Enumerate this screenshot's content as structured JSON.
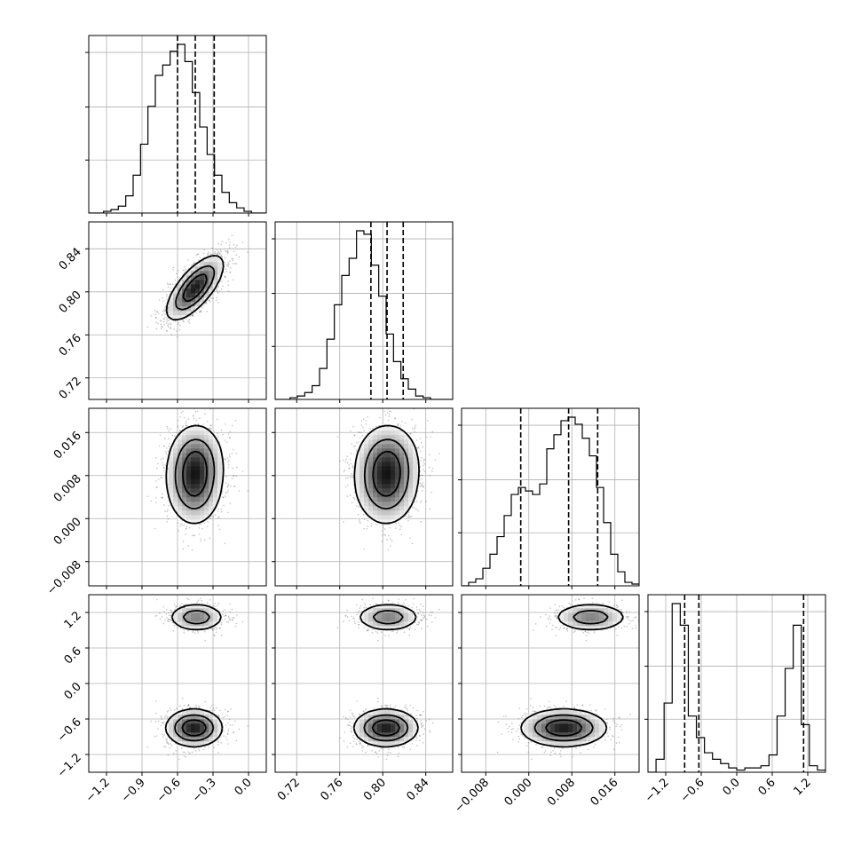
{
  "chart_data": {
    "type": "corner",
    "grid": true,
    "n_params": 4,
    "labels": [
      "",
      "",
      "",
      ""
    ],
    "ranges": [
      [
        -1.35,
        0.15
      ],
      [
        0.7,
        0.865
      ],
      [
        -0.0125,
        0.0205
      ],
      [
        -1.5,
        1.5
      ]
    ],
    "ticks": [
      [
        -1.2,
        -0.9,
        -0.6,
        -0.3,
        0.0
      ],
      [
        0.72,
        0.76,
        0.8,
        0.84
      ],
      [
        -0.008,
        0.0,
        0.008,
        0.016
      ],
      [
        -1.2,
        -0.6,
        0.0,
        0.6,
        1.2
      ]
    ],
    "tick_labels": [
      [
        "−1.2",
        "−0.9",
        "−0.6",
        "−0.3",
        "0.0"
      ],
      [
        "0.72",
        "0.76",
        "0.80",
        "0.84"
      ],
      [
        "−0.008",
        "0.000",
        "0.008",
        "0.016"
      ],
      [
        "−1.2",
        "−0.6",
        "0.0",
        "0.6",
        "1.2"
      ]
    ],
    "quantiles": [
      [
        -0.6,
        -0.45,
        -0.29
      ],
      [
        0.789,
        0.804,
        0.819
      ],
      [
        -0.0015,
        0.0074,
        0.0128
      ],
      [
        -0.88,
        -0.64,
        1.13
      ]
    ],
    "histograms": [
      {
        "counts": [
          0,
          0,
          1,
          2,
          4,
          10,
          22,
          40,
          62,
          80,
          86,
          94,
          98,
          88,
          70,
          50,
          34,
          22,
          12,
          6,
          3,
          1,
          0,
          0
        ]
      },
      {
        "counts": [
          0,
          0,
          1,
          2,
          4,
          8,
          18,
          35,
          55,
          72,
          82,
          98,
          96,
          78,
          60,
          38,
          22,
          12,
          6,
          2,
          1,
          0,
          0,
          0
        ]
      },
      {
        "counts": [
          0,
          2,
          4,
          10,
          18,
          28,
          40,
          52,
          56,
          54,
          52,
          58,
          78,
          86,
          94,
          96,
          92,
          84,
          74,
          56,
          36,
          18,
          8,
          2,
          1
        ]
      },
      {
        "counts": [
          0,
          6,
          32,
          78,
          68,
          26,
          16,
          9,
          6,
          4,
          2,
          1,
          2,
          2,
          3,
          8,
          26,
          48,
          68,
          22,
          3,
          1
        ]
      }
    ],
    "components": [
      {
        "weight": 0.62,
        "mean": [
          -0.46,
          0.803,
          0.0065,
          -0.75
        ],
        "sd": [
          0.12,
          0.015,
          0.004,
          0.16
        ],
        "corr01": 0.7
      },
      {
        "weight": 0.38,
        "mean": [
          -0.44,
          0.805,
          0.0115,
          1.12
        ],
        "sd": [
          0.12,
          0.015,
          0.0035,
          0.12
        ],
        "corr01": 0.7
      }
    ]
  }
}
